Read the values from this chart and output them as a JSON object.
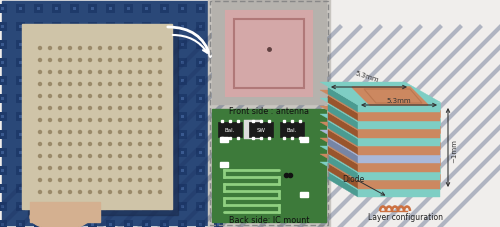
{
  "background_color": "#f0eeec",
  "panel1": {
    "foam_color": "#2a4878",
    "foam_dark": "#1e3a6a",
    "board_color": "#cfc4a8",
    "board_edge": "#b8ad94",
    "dot_color": "#9a8a6a",
    "dot_rows": 13,
    "dot_cols": 13
  },
  "panel2": {
    "bg_color": "#c8c5c0",
    "front_bg": "#b0ada8",
    "antenna_color": "#d4a8a8",
    "antenna_inner": "#c49090",
    "front_label": "Front side : antenna",
    "back_label": "Back side: IC mount",
    "pcb_color": "#3d7a3a",
    "chip_labels": [
      "Bal.",
      "SW",
      "Bal."
    ]
  },
  "panel3": {
    "layer_colors": [
      "#7ecec4",
      "#cc8860",
      "#7ecec4",
      "#cc8860",
      "#aab8d8",
      "#cc8860",
      "#7ecec4",
      "#cc8860",
      "#7ecec4",
      "#cc8860",
      "#7ecec4"
    ],
    "top_green": "#7ecec4",
    "top_patch": "#cc8860",
    "diode_color": "#cc7040",
    "dim_h": "5.3mm",
    "dim_v": "~1mm",
    "diode_label": "Diode",
    "config_label": "Layer configuration"
  }
}
